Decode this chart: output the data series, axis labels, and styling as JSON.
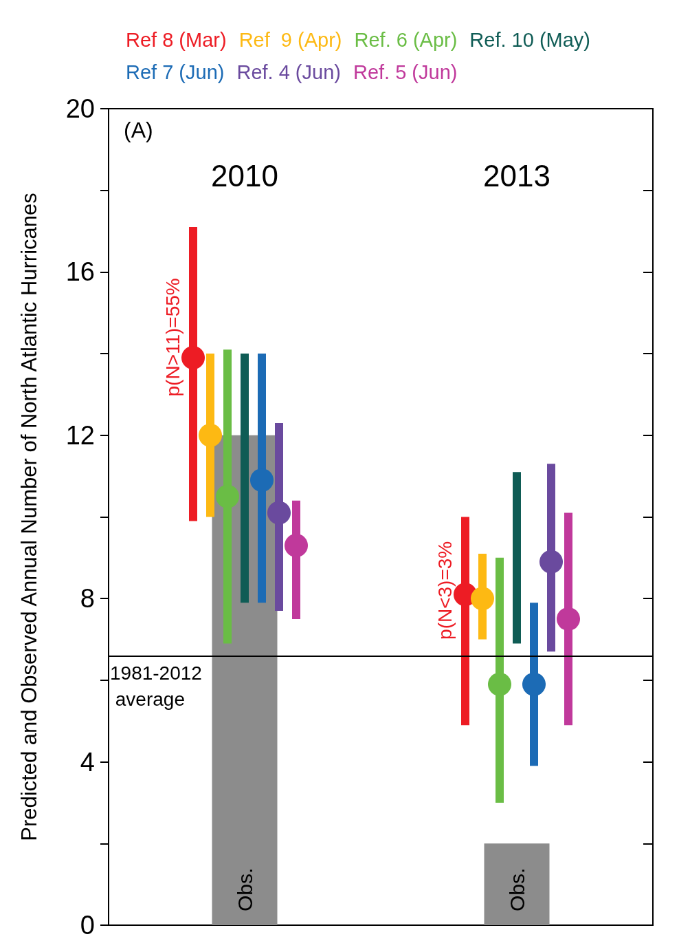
{
  "chart_data": {
    "type": "scatter",
    "categories": [
      "2010",
      "2013"
    ],
    "ylabel": "Predicted and Observed Annual Number of North Atlantic Hurricanes",
    "ylim": [
      0,
      20
    ],
    "yticks": [
      0,
      {
        "value": 2,
        "label": null
      },
      4,
      {
        "value": 6,
        "label": null
      },
      8,
      {
        "value": 10,
        "label": null
      },
      12,
      {
        "value": 14,
        "label": null
      },
      16,
      {
        "value": 18,
        "label": null
      },
      20
    ],
    "grid": false,
    "legend": "top",
    "marker": "circle",
    "series": [
      {
        "name": "Obs.",
        "type": "bar",
        "color": "#8c8c8c",
        "values": [
          12,
          2
        ]
      },
      {
        "name": "Ref 8 (Mar)",
        "color": "#ed1c24",
        "values": [
          13.9,
          8.1
        ],
        "errors": [
          [
            9.9,
            17.1
          ],
          [
            4.9,
            10.0
          ]
        ]
      },
      {
        "name": "Ref  9 (Apr)",
        "color": "#fdb913",
        "values": [
          12.0,
          8.0
        ],
        "errors": [
          [
            10.0,
            14.0
          ],
          [
            7.0,
            9.1
          ]
        ]
      },
      {
        "name": "Ref. 6 (Apr)",
        "color": "#6abd45",
        "values": [
          10.5,
          5.9
        ],
        "errors": [
          [
            6.9,
            14.1
          ],
          [
            3.0,
            9.0
          ]
        ]
      },
      {
        "name": "Ref. 10 (May)",
        "type": "bar",
        "color": "#0f5c55",
        "base": [
          7.9,
          6.9
        ],
        "values": [
          6.1,
          4.2
        ]
      },
      {
        "name": "Ref 7 (Jun)",
        "color": "#1c6bb5",
        "values": [
          10.9,
          5.9
        ],
        "errors": [
          [
            7.9,
            14.0
          ],
          [
            3.9,
            7.9
          ]
        ]
      },
      {
        "name": "Ref. 4 (Jun)",
        "color": "#6a4a9e",
        "values": [
          10.1,
          8.9
        ],
        "errors": [
          [
            7.7,
            12.3
          ],
          [
            6.7,
            11.3
          ]
        ]
      },
      {
        "name": "Ref. 5 (Jun)",
        "color": "#c0399b",
        "values": [
          9.3,
          7.5
        ],
        "errors": [
          [
            7.5,
            10.4
          ],
          [
            4.9,
            10.1
          ]
        ]
      }
    ],
    "ref_lines": [
      {
        "axis": "y",
        "value": 6.6,
        "label": "1981-2012 average"
      }
    ],
    "annotations": [
      "(A)",
      "p(N>11)=55%",
      "p(N<3)=3%"
    ]
  }
}
